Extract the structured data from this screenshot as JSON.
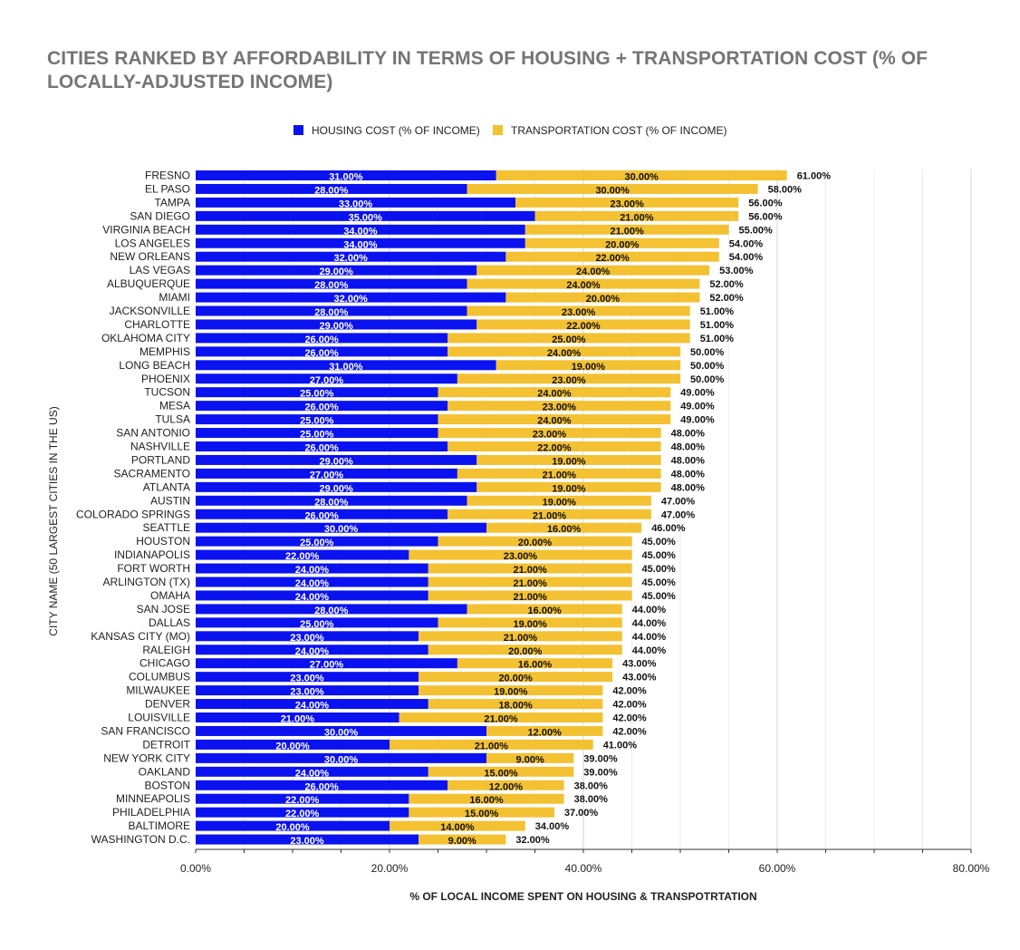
{
  "title": "CITIES RANKED BY AFFORDABILITY IN TERMS OF HOUSING + TRANSPORTATION COST (% OF LOCALLY-ADJUSTED INCOME)",
  "colors": {
    "housing": "#0a12f0",
    "transport": "#f3c132",
    "grid": "#e0e0e0"
  },
  "chart_data": {
    "type": "bar",
    "orientation": "horizontal",
    "stacked": true,
    "title": "CITIES RANKED BY AFFORDABILITY IN TERMS OF HOUSING + TRANSPORTATION COST (% OF LOCALLY-ADJUSTED INCOME)",
    "xlabel": "% OF LOCAL INCOME SPENT ON HOUSING & TRANSPOTRTATION",
    "ylabel": "CITY NAME (50 LARGEST CITIES IN THE US)",
    "xlim": [
      0,
      80
    ],
    "x_ticks": [
      "0.00%",
      "20.00%",
      "40.00%",
      "60.00%",
      "80.00%"
    ],
    "legend_position": "top",
    "grid": true,
    "categories": [
      "FRESNO",
      "EL PASO",
      "TAMPA",
      "SAN DIEGO",
      "VIRGINIA BEACH",
      "LOS ANGELES",
      "NEW ORLEANS",
      "LAS VEGAS",
      "ALBUQUERQUE",
      "MIAMI",
      "JACKSONVILLE",
      "CHARLOTTE",
      "OKLAHOMA CITY",
      "MEMPHIS",
      "LONG BEACH",
      "PHOENIX",
      "TUCSON",
      "MESA",
      "TULSA",
      "SAN ANTONIO",
      "NASHVILLE",
      "PORTLAND",
      "SACRAMENTO",
      "ATLANTA",
      "AUSTIN",
      "COLORADO SPRINGS",
      "SEATTLE",
      "HOUSTON",
      "INDIANAPOLIS",
      "FORT WORTH",
      "ARLINGTON (TX)",
      "OMAHA",
      "SAN JOSE",
      "DALLAS",
      "KANSAS CITY (MO)",
      "RALEIGH",
      "CHICAGO",
      "COLUMBUS",
      "MILWAUKEE",
      "DENVER",
      "LOUISVILLE",
      "SAN FRANCISCO",
      "DETROIT",
      "NEW YORK CITY",
      "OAKLAND",
      "BOSTON",
      "MINNEAPOLIS",
      "PHILADELPHIA",
      "BALTIMORE",
      "WASHINGTON D.C."
    ],
    "series": [
      {
        "name": "HOUSING COST (% OF INCOME)",
        "values": [
          31,
          28,
          33,
          35,
          34,
          34,
          32,
          29,
          28,
          32,
          28,
          29,
          26,
          26,
          31,
          27,
          25,
          26,
          25,
          25,
          26,
          29,
          27,
          29,
          28,
          26,
          30,
          25,
          22,
          24,
          24,
          24,
          28,
          25,
          23,
          24,
          27,
          23,
          23,
          24,
          21,
          30,
          20,
          30,
          24,
          26,
          22,
          22,
          20,
          23
        ]
      },
      {
        "name": "TRANSPORTATION COST (% OF INCOME)",
        "values": [
          30,
          30,
          23,
          21,
          21,
          20,
          22,
          24,
          24,
          20,
          23,
          22,
          25,
          24,
          19,
          23,
          24,
          23,
          24,
          23,
          22,
          19,
          21,
          19,
          19,
          21,
          16,
          20,
          23,
          21,
          21,
          21,
          16,
          19,
          21,
          20,
          16,
          20,
          19,
          18,
          21,
          12,
          21,
          9,
          15,
          12,
          16,
          15,
          14,
          9
        ]
      }
    ],
    "totals": [
      61,
      58,
      56,
      56,
      55,
      54,
      54,
      53,
      52,
      52,
      51,
      51,
      51,
      50,
      50,
      50,
      49,
      49,
      49,
      48,
      48,
      48,
      48,
      48,
      47,
      47,
      46,
      45,
      45,
      45,
      45,
      45,
      44,
      44,
      44,
      44,
      43,
      43,
      42,
      42,
      42,
      42,
      41,
      39,
      39,
      38,
      38,
      37,
      34,
      32
    ]
  }
}
